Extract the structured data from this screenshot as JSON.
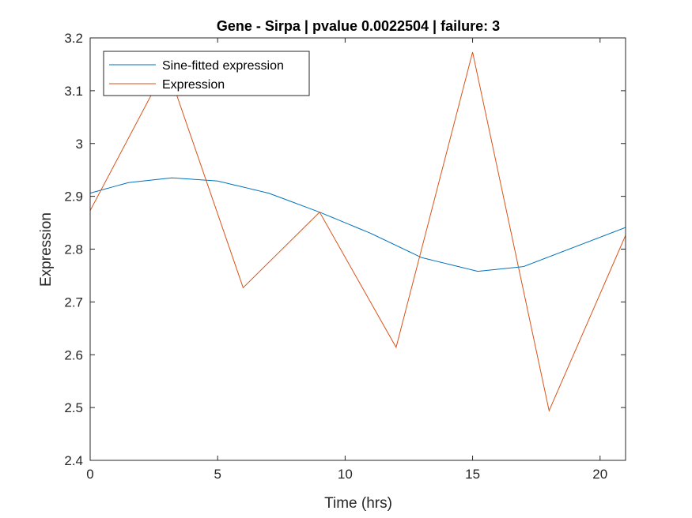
{
  "chart_data": {
    "type": "line",
    "title": "Gene - Sirpa | pvalue 0.0022504 | failure: 3",
    "xlabel": "Time (hrs)",
    "ylabel": "Expression",
    "xlim": [
      0,
      21
    ],
    "ylim": [
      2.4,
      3.2
    ],
    "xticks": [
      0,
      5,
      10,
      15,
      20
    ],
    "xtick_labels": [
      "0",
      "5",
      "10",
      "15",
      "20"
    ],
    "yticks": [
      2.4,
      2.5,
      2.6,
      2.7,
      2.8,
      2.9,
      3.0,
      3.1,
      3.2
    ],
    "ytick_labels": [
      "2.4",
      "2.5",
      "2.6",
      "2.7",
      "2.8",
      "2.9",
      "3",
      "3.1",
      "3.2"
    ],
    "grid": false,
    "legend_position": "top-left",
    "series": [
      {
        "name": "Sine-fitted expression",
        "color": "#0072BD",
        "kind": "sine",
        "x": [
          0,
          1.5,
          3.2,
          5,
          7,
          9,
          11,
          13,
          15.2,
          17,
          19,
          21
        ],
        "y": [
          2.906,
          2.926,
          2.935,
          2.929,
          2.906,
          2.87,
          2.83,
          2.784,
          2.758,
          2.767,
          2.804,
          2.841
        ]
      },
      {
        "name": "Expression",
        "color": "#D95319",
        "kind": "line",
        "x": [
          0,
          3,
          6,
          9,
          12,
          15,
          18,
          21
        ],
        "y": [
          2.873,
          3.147,
          2.727,
          2.87,
          2.614,
          3.173,
          2.494,
          2.826
        ]
      }
    ]
  }
}
